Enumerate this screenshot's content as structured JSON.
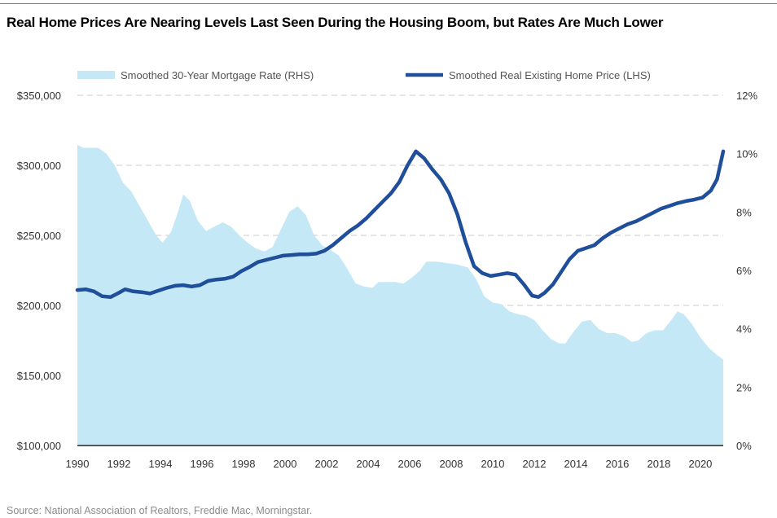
{
  "title": "Real Home Prices Are Nearing Levels Last Seen During the Housing Boom, but Rates Are Much Lower",
  "source": "Source: National Association of Realtors, Freddie Mac, Morningstar.",
  "chart_data": {
    "type": "area",
    "title": "Real Home Prices Are Nearing Levels Last Seen During the Housing Boom, but Rates Are Much Lower",
    "x_ticks": [
      "1990",
      "1992",
      "1994",
      "1996",
      "1998",
      "2000",
      "2002",
      "2004",
      "2006",
      "2008",
      "2010",
      "2012",
      "2014",
      "2016",
      "2018",
      "2020"
    ],
    "x_range": [
      1990,
      2021.1
    ],
    "y_left": {
      "range": [
        100000,
        350000
      ],
      "ticks": [
        "$100,000",
        "$150,000",
        "$200,000",
        "$250,000",
        "$300,000",
        "$350,000"
      ]
    },
    "y_right": {
      "range": [
        0,
        12
      ],
      "ticks": [
        "0%",
        "2%",
        "4%",
        "6%",
        "8%",
        "10%",
        "12%"
      ]
    },
    "grid": "horizontal dashed",
    "legend_position": "top",
    "series": [
      {
        "name": "Smoothed 30-Year Mortgage Rate (RHS)",
        "type": "area",
        "axis": "right",
        "color": "#c5e8f6",
        "points": [
          [
            1990.0,
            10.3
          ],
          [
            1990.3,
            10.2
          ],
          [
            1990.7,
            10.2
          ],
          [
            1991.0,
            10.2
          ],
          [
            1991.4,
            10.0
          ],
          [
            1991.8,
            9.6
          ],
          [
            1992.2,
            9.0
          ],
          [
            1992.6,
            8.7
          ],
          [
            1993.0,
            8.2
          ],
          [
            1993.4,
            7.7
          ],
          [
            1993.8,
            7.2
          ],
          [
            1994.1,
            6.95
          ],
          [
            1994.5,
            7.3
          ],
          [
            1994.8,
            7.9
          ],
          [
            1995.1,
            8.6
          ],
          [
            1995.4,
            8.4
          ],
          [
            1995.8,
            7.7
          ],
          [
            1996.2,
            7.35
          ],
          [
            1996.6,
            7.5
          ],
          [
            1997.0,
            7.65
          ],
          [
            1997.4,
            7.5
          ],
          [
            1997.8,
            7.2
          ],
          [
            1998.2,
            6.95
          ],
          [
            1998.6,
            6.75
          ],
          [
            1999.0,
            6.65
          ],
          [
            1999.4,
            6.8
          ],
          [
            1999.8,
            7.4
          ],
          [
            2000.2,
            8.0
          ],
          [
            2000.6,
            8.2
          ],
          [
            2001.0,
            7.9
          ],
          [
            2001.4,
            7.2
          ],
          [
            2001.8,
            6.85
          ],
          [
            2002.2,
            6.7
          ],
          [
            2002.6,
            6.5
          ],
          [
            2003.0,
            6.05
          ],
          [
            2003.4,
            5.55
          ],
          [
            2003.8,
            5.45
          ],
          [
            2004.2,
            5.4
          ],
          [
            2004.5,
            5.6
          ],
          [
            2004.9,
            5.6
          ],
          [
            2005.3,
            5.6
          ],
          [
            2005.7,
            5.55
          ],
          [
            2006.1,
            5.75
          ],
          [
            2006.5,
            6.0
          ],
          [
            2006.8,
            6.3
          ],
          [
            2007.3,
            6.3
          ],
          [
            2007.8,
            6.25
          ],
          [
            2008.3,
            6.2
          ],
          [
            2008.8,
            6.1
          ],
          [
            2009.2,
            5.7
          ],
          [
            2009.6,
            5.1
          ],
          [
            2010.0,
            4.9
          ],
          [
            2010.4,
            4.85
          ],
          [
            2010.8,
            4.6
          ],
          [
            2011.2,
            4.5
          ],
          [
            2011.6,
            4.45
          ],
          [
            2012.0,
            4.3
          ],
          [
            2012.4,
            3.95
          ],
          [
            2012.8,
            3.65
          ],
          [
            2013.2,
            3.5
          ],
          [
            2013.5,
            3.5
          ],
          [
            2013.9,
            3.9
          ],
          [
            2014.3,
            4.25
          ],
          [
            2014.7,
            4.3
          ],
          [
            2015.1,
            4.0
          ],
          [
            2015.5,
            3.85
          ],
          [
            2015.9,
            3.85
          ],
          [
            2016.3,
            3.75
          ],
          [
            2016.7,
            3.55
          ],
          [
            2017.0,
            3.6
          ],
          [
            2017.4,
            3.85
          ],
          [
            2017.8,
            3.95
          ],
          [
            2018.2,
            3.95
          ],
          [
            2018.6,
            4.3
          ],
          [
            2018.9,
            4.6
          ],
          [
            2019.2,
            4.5
          ],
          [
            2019.6,
            4.15
          ],
          [
            2020.0,
            3.7
          ],
          [
            2020.4,
            3.35
          ],
          [
            2020.8,
            3.1
          ],
          [
            2021.1,
            2.95
          ]
        ]
      },
      {
        "name": "Smoothed Real Existing Home Price (LHS)",
        "type": "line",
        "axis": "left",
        "color": "#1f4e9a",
        "points": [
          [
            1990.0,
            211000
          ],
          [
            1990.4,
            211500
          ],
          [
            1990.8,
            210000
          ],
          [
            1991.2,
            206500
          ],
          [
            1991.6,
            206000
          ],
          [
            1992.0,
            209000
          ],
          [
            1992.3,
            211500
          ],
          [
            1992.7,
            210000
          ],
          [
            1993.1,
            209500
          ],
          [
            1993.5,
            208500
          ],
          [
            1993.9,
            210500
          ],
          [
            1994.3,
            212500
          ],
          [
            1994.7,
            214000
          ],
          [
            1995.1,
            214500
          ],
          [
            1995.5,
            213500
          ],
          [
            1995.9,
            214500
          ],
          [
            1996.3,
            217500
          ],
          [
            1996.7,
            218500
          ],
          [
            1997.1,
            219000
          ],
          [
            1997.5,
            220500
          ],
          [
            1997.9,
            224500
          ],
          [
            1998.3,
            227500
          ],
          [
            1998.7,
            231000
          ],
          [
            1999.1,
            232500
          ],
          [
            1999.5,
            234000
          ],
          [
            1999.9,
            235500
          ],
          [
            2000.3,
            236000
          ],
          [
            2000.7,
            236500
          ],
          [
            2001.1,
            236500
          ],
          [
            2001.5,
            237000
          ],
          [
            2001.9,
            239000
          ],
          [
            2002.3,
            243000
          ],
          [
            2002.7,
            248000
          ],
          [
            2003.1,
            253000
          ],
          [
            2003.5,
            257000
          ],
          [
            2003.9,
            262000
          ],
          [
            2004.3,
            268000
          ],
          [
            2004.7,
            274000
          ],
          [
            2005.1,
            280000
          ],
          [
            2005.5,
            288000
          ],
          [
            2005.9,
            300000
          ],
          [
            2006.3,
            310000
          ],
          [
            2006.7,
            305000
          ],
          [
            2007.1,
            297000
          ],
          [
            2007.5,
            290000
          ],
          [
            2007.9,
            280000
          ],
          [
            2008.3,
            265000
          ],
          [
            2008.7,
            245000
          ],
          [
            2009.1,
            228000
          ],
          [
            2009.5,
            223000
          ],
          [
            2009.9,
            221000
          ],
          [
            2010.3,
            222000
          ],
          [
            2010.7,
            223000
          ],
          [
            2011.1,
            222000
          ],
          [
            2011.5,
            215000
          ],
          [
            2011.9,
            207000
          ],
          [
            2012.2,
            206000
          ],
          [
            2012.5,
            209000
          ],
          [
            2012.9,
            215000
          ],
          [
            2013.3,
            224000
          ],
          [
            2013.7,
            233000
          ],
          [
            2014.1,
            239000
          ],
          [
            2014.5,
            241000
          ],
          [
            2014.9,
            243000
          ],
          [
            2015.3,
            248000
          ],
          [
            2015.7,
            252000
          ],
          [
            2016.1,
            255000
          ],
          [
            2016.5,
            258000
          ],
          [
            2016.9,
            260000
          ],
          [
            2017.3,
            263000
          ],
          [
            2017.7,
            266000
          ],
          [
            2018.1,
            269000
          ],
          [
            2018.5,
            271000
          ],
          [
            2018.9,
            273000
          ],
          [
            2019.3,
            274500
          ],
          [
            2019.7,
            275500
          ],
          [
            2020.1,
            277000
          ],
          [
            2020.5,
            282000
          ],
          [
            2020.8,
            290000
          ],
          [
            2021.1,
            310000
          ]
        ]
      }
    ]
  }
}
